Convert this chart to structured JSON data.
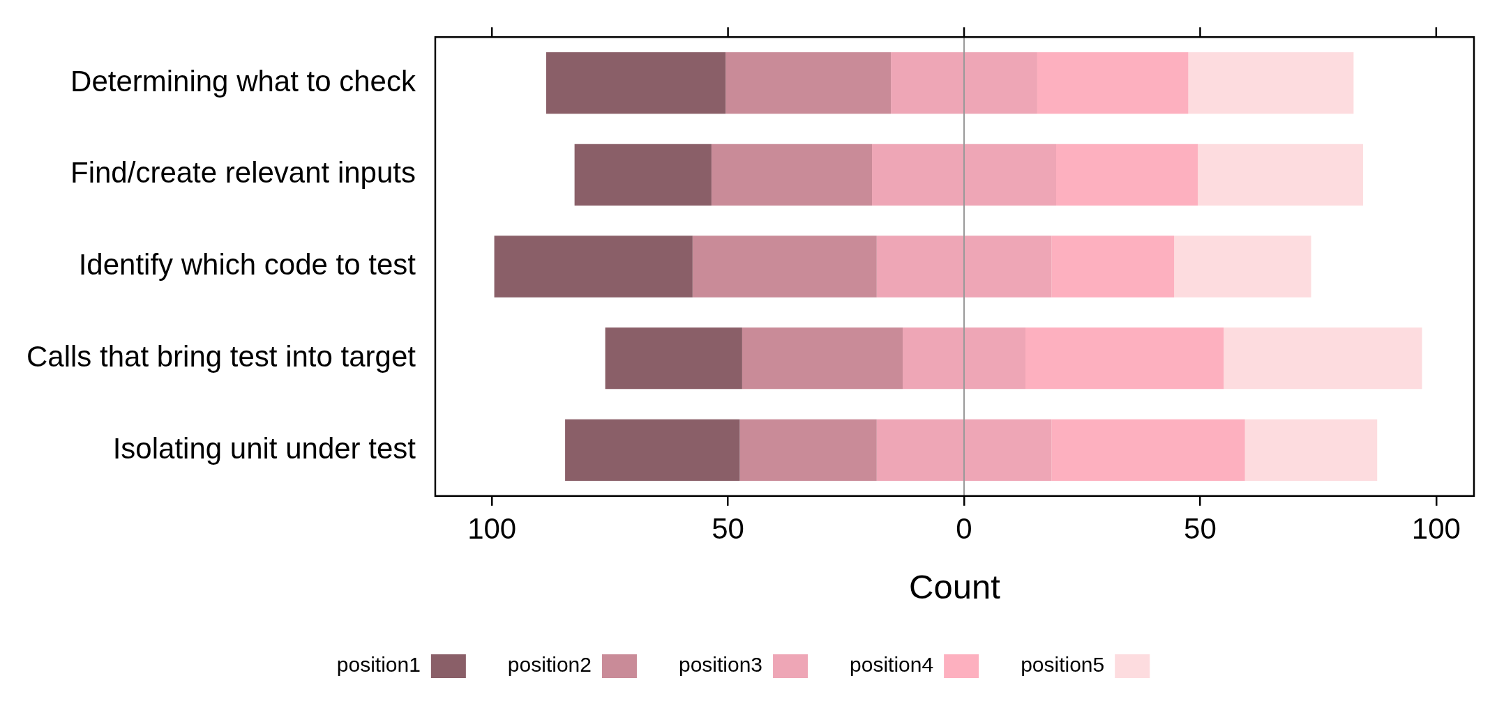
{
  "chart_data": {
    "type": "bar",
    "orientation": "horizontal",
    "xlabel": "Count",
    "categories": [
      "Determining what to check",
      "Find/create relevant inputs",
      "Identify which code to test",
      "Calls that bring test into target",
      "Isolating unit under test"
    ],
    "series": [
      {
        "name": "position1",
        "color": "#8a5f68",
        "values": [
          38,
          29,
          42,
          29,
          37
        ],
        "base": [
          -88.5,
          -82.5,
          -99.5,
          -76,
          -84.5
        ]
      },
      {
        "name": "position2",
        "color": "#c98b98",
        "values": [
          35,
          34,
          39,
          34,
          29
        ],
        "base": [
          -50.5,
          -53.5,
          -57.5,
          -47,
          -47.5
        ]
      },
      {
        "name": "position3",
        "color": "#eea6b6",
        "values": [
          31,
          39,
          37,
          26,
          37
        ],
        "base": [
          -15.5,
          -19.5,
          -18.5,
          -13,
          -18.5
        ]
      },
      {
        "name": "position4",
        "color": "#fdb0bf",
        "values": [
          32,
          30,
          26,
          42,
          41
        ],
        "base": [
          15.5,
          19.5,
          18.5,
          13,
          18.5
        ]
      },
      {
        "name": "position5",
        "color": "#fddcdf",
        "values": [
          35,
          35,
          29,
          42,
          28
        ],
        "base": [
          47.5,
          49.5,
          44.5,
          55,
          59.5
        ]
      }
    ],
    "xlim": [
      -112,
      108
    ],
    "xticks": [
      {
        "value": -100,
        "label": "100"
      },
      {
        "value": -50,
        "label": "50"
      },
      0,
      50,
      {
        "value": 100,
        "label": "100"
      }
    ],
    "ref_lines": [
      {
        "axis": "x",
        "value": 0,
        "color": "#999999"
      }
    ],
    "grid": false,
    "legend": "bottom"
  }
}
